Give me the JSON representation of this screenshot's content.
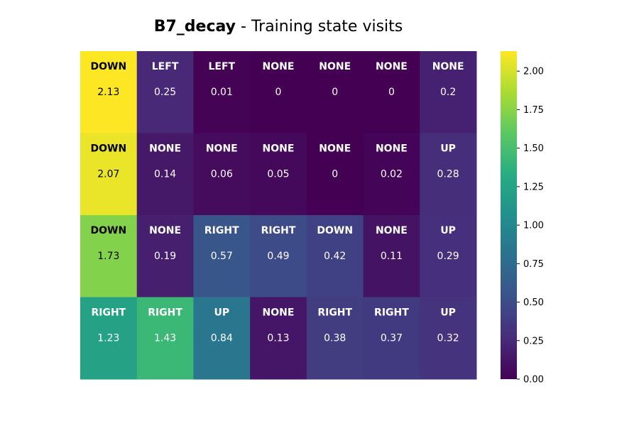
{
  "title": {
    "name": "B7_decay",
    "rest": " - Training state visits"
  },
  "chart_data": {
    "type": "heatmap",
    "title": "B7_decay - Training state visits",
    "rows": 4,
    "cols": 7,
    "values": [
      [
        2.13,
        0.25,
        0.01,
        0,
        0,
        0,
        0.2
      ],
      [
        2.07,
        0.14,
        0.06,
        0.05,
        0,
        0.02,
        0.28
      ],
      [
        1.73,
        0.19,
        0.57,
        0.49,
        0.42,
        0.11,
        0.29
      ],
      [
        1.23,
        1.43,
        0.84,
        0.13,
        0.38,
        0.37,
        0.32
      ]
    ],
    "actions": [
      [
        "DOWN",
        "LEFT",
        "LEFT",
        "NONE",
        "NONE",
        "NONE",
        "NONE"
      ],
      [
        "DOWN",
        "NONE",
        "NONE",
        "NONE",
        "NONE",
        "NONE",
        "UP"
      ],
      [
        "DOWN",
        "NONE",
        "RIGHT",
        "RIGHT",
        "DOWN",
        "NONE",
        "UP"
      ],
      [
        "RIGHT",
        "RIGHT",
        "UP",
        "NONE",
        "RIGHT",
        "RIGHT",
        "UP"
      ]
    ],
    "colormap": "viridis",
    "vmin": 0,
    "vmax": 2.13,
    "colorbar": {
      "ticks": [
        0.0,
        0.25,
        0.5,
        0.75,
        1.0,
        1.25,
        1.5,
        1.75,
        2.0
      ],
      "tick_labels": [
        "0.00",
        "0.25",
        "0.50",
        "0.75",
        "1.00",
        "1.25",
        "1.50",
        "1.75",
        "2.00"
      ],
      "placement": "right"
    },
    "grid": false,
    "axes_visible": false
  }
}
